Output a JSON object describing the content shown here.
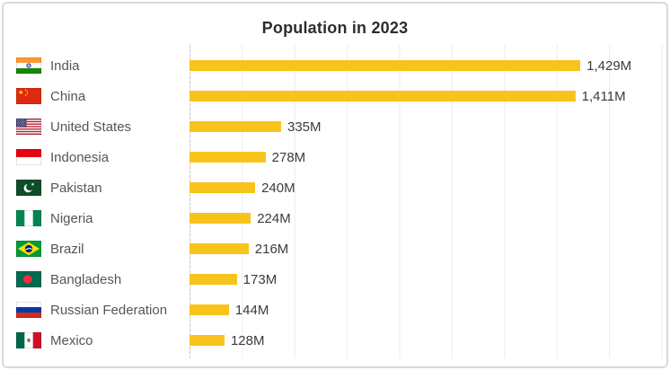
{
  "chart_data": {
    "type": "bar",
    "orientation": "horizontal",
    "title": "Population in 2023",
    "unit": "M",
    "xlabel": "",
    "ylabel": "",
    "xlim": [
      0,
      1734
    ],
    "gridlines": "vertical, unlabeled, light gray, 9 lines",
    "legend": "none",
    "bar_color": "#F8C41B",
    "rows": [
      {
        "label": "India",
        "flag": "in",
        "value": 1429,
        "display": "1,429M"
      },
      {
        "label": "China",
        "flag": "cn",
        "value": 1411,
        "display": "1,411M"
      },
      {
        "label": "United States",
        "flag": "us",
        "value": 335,
        "display": "335M"
      },
      {
        "label": "Indonesia",
        "flag": "id",
        "value": 278,
        "display": "278M"
      },
      {
        "label": "Pakistan",
        "flag": "pk",
        "value": 240,
        "display": "240M"
      },
      {
        "label": "Nigeria",
        "flag": "ng",
        "value": 224,
        "display": "224M"
      },
      {
        "label": "Brazil",
        "flag": "br",
        "value": 216,
        "display": "216M"
      },
      {
        "label": "Bangladesh",
        "flag": "bd",
        "value": 173,
        "display": "173M"
      },
      {
        "label": "Russian Federation",
        "flag": "ru",
        "value": 144,
        "display": "144M"
      },
      {
        "label": "Mexico",
        "flag": "mx",
        "value": 128,
        "display": "128M"
      }
    ]
  },
  "colors": {
    "bar": "#F8C41B",
    "grid_line": "#ececec",
    "axis_dash": "#c9c9c9",
    "card_border": "#d9d9d9",
    "title_text": "#2d2d2d",
    "label_text": "#51565c",
    "value_text": "#3b3b3b"
  }
}
